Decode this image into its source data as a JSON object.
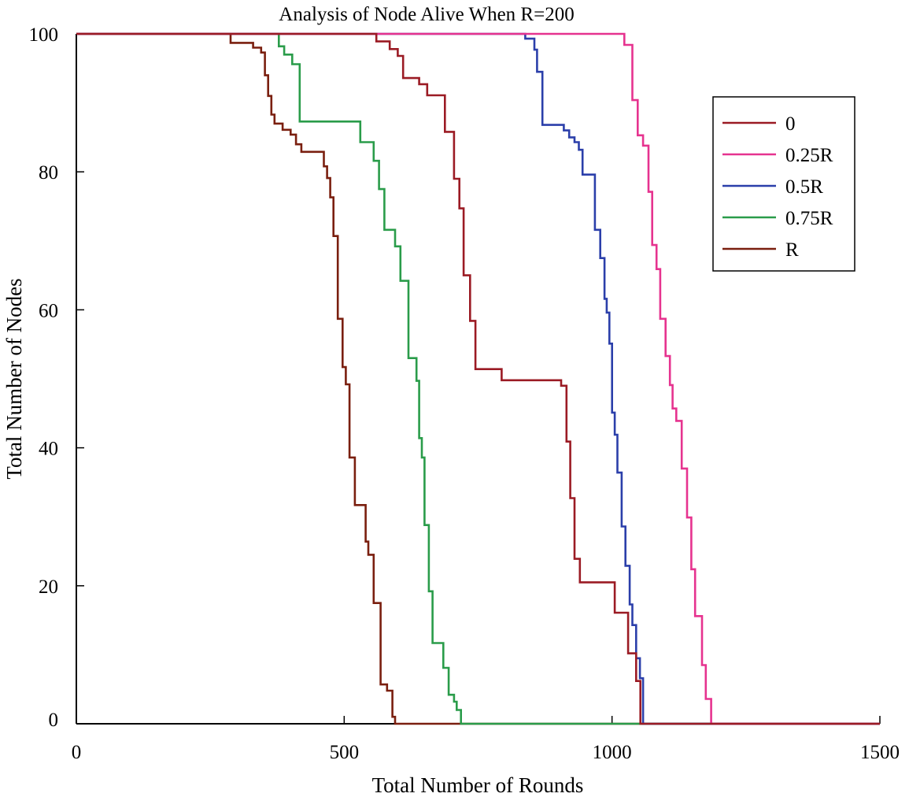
{
  "chart_data": {
    "type": "line",
    "title": "Analysis of Node Alive When R=200",
    "xlabel": "Total Number of Rounds",
    "ylabel": "Total Number of Nodes",
    "xlim": [
      0,
      1500
    ],
    "ylim": [
      0,
      100
    ],
    "xticks": [
      {
        "value": 0,
        "label": "0"
      },
      {
        "value": 500,
        "label": "500"
      },
      {
        "value": 1000,
        "label": "1000"
      },
      {
        "value": 1500,
        "label": "1500"
      }
    ],
    "yticks": [
      {
        "value": 0,
        "label": "0"
      },
      {
        "value": 20,
        "label": "20"
      },
      {
        "value": 40,
        "label": "40"
      },
      {
        "value": 60,
        "label": "60"
      },
      {
        "value": 80,
        "label": "80"
      },
      {
        "value": 100,
        "label": "100"
      }
    ],
    "grid": false,
    "legend_position": "top-right",
    "series": [
      {
        "name": "0",
        "color": "#9b1b24",
        "points": [
          [
            0,
            100
          ],
          [
            560,
            100
          ],
          [
            560,
            98.9
          ],
          [
            585,
            98.9
          ],
          [
            585,
            97.8
          ],
          [
            600,
            97.8
          ],
          [
            600,
            96.8
          ],
          [
            610,
            96.8
          ],
          [
            610,
            93.6
          ],
          [
            640,
            93.6
          ],
          [
            640,
            92.7
          ],
          [
            655,
            92.7
          ],
          [
            655,
            91.1
          ],
          [
            688,
            91.1
          ],
          [
            688,
            85.8
          ],
          [
            705,
            85.8
          ],
          [
            705,
            79.0
          ],
          [
            715,
            79.0
          ],
          [
            715,
            74.7
          ],
          [
            723,
            74.7
          ],
          [
            723,
            65.0
          ],
          [
            735,
            65.0
          ],
          [
            735,
            58.4
          ],
          [
            745,
            58.4
          ],
          [
            745,
            51.4
          ],
          [
            794,
            51.4
          ],
          [
            794,
            49.8
          ],
          [
            905,
            49.8
          ],
          [
            905,
            49.0
          ],
          [
            915,
            49.0
          ],
          [
            915,
            40.9
          ],
          [
            922,
            40.9
          ],
          [
            922,
            32.7
          ],
          [
            930,
            32.7
          ],
          [
            930,
            23.9
          ],
          [
            940,
            23.9
          ],
          [
            940,
            20.5
          ],
          [
            1005,
            20.5
          ],
          [
            1005,
            16.1
          ],
          [
            1030,
            16.1
          ],
          [
            1030,
            10.2
          ],
          [
            1045,
            10.2
          ],
          [
            1045,
            6.2
          ],
          [
            1053,
            6.2
          ],
          [
            1053,
            0
          ],
          [
            1500,
            0
          ]
        ]
      },
      {
        "name": "0.25R",
        "color": "#e6338f",
        "points": [
          [
            0,
            100
          ],
          [
            1023,
            100
          ],
          [
            1023,
            98.4
          ],
          [
            1038,
            98.4
          ],
          [
            1038,
            90.4
          ],
          [
            1048,
            90.4
          ],
          [
            1048,
            85.3
          ],
          [
            1058,
            85.3
          ],
          [
            1058,
            83.8
          ],
          [
            1068,
            83.8
          ],
          [
            1068,
            77.1
          ],
          [
            1075,
            77.1
          ],
          [
            1075,
            69.4
          ],
          [
            1083,
            69.4
          ],
          [
            1083,
            65.9
          ],
          [
            1090,
            65.9
          ],
          [
            1090,
            58.7
          ],
          [
            1100,
            58.7
          ],
          [
            1100,
            53.3
          ],
          [
            1108,
            53.3
          ],
          [
            1108,
            49.1
          ],
          [
            1113,
            49.1
          ],
          [
            1113,
            45.7
          ],
          [
            1120,
            45.7
          ],
          [
            1120,
            43.9
          ],
          [
            1130,
            43.9
          ],
          [
            1130,
            37.0
          ],
          [
            1140,
            37.0
          ],
          [
            1140,
            29.9
          ],
          [
            1148,
            29.9
          ],
          [
            1148,
            22.4
          ],
          [
            1155,
            22.4
          ],
          [
            1155,
            15.6
          ],
          [
            1168,
            15.6
          ],
          [
            1168,
            8.5
          ],
          [
            1175,
            8.5
          ],
          [
            1175,
            3.6
          ],
          [
            1185,
            3.6
          ],
          [
            1185,
            0
          ],
          [
            1500,
            0
          ]
        ]
      },
      {
        "name": "0.5R",
        "color": "#2b3faa",
        "points": [
          [
            0,
            100
          ],
          [
            838,
            100
          ],
          [
            838,
            99.3
          ],
          [
            855,
            99.3
          ],
          [
            855,
            97.7
          ],
          [
            860,
            97.7
          ],
          [
            860,
            94.5
          ],
          [
            870,
            94.5
          ],
          [
            870,
            86.8
          ],
          [
            910,
            86.8
          ],
          [
            910,
            86.0
          ],
          [
            920,
            86.0
          ],
          [
            920,
            85.0
          ],
          [
            930,
            85.0
          ],
          [
            930,
            84.3
          ],
          [
            938,
            84.3
          ],
          [
            938,
            83.2
          ],
          [
            945,
            83.2
          ],
          [
            945,
            79.6
          ],
          [
            968,
            79.6
          ],
          [
            968,
            71.6
          ],
          [
            978,
            71.6
          ],
          [
            978,
            67.5
          ],
          [
            986,
            67.5
          ],
          [
            986,
            61.6
          ],
          [
            990,
            61.6
          ],
          [
            990,
            59.6
          ],
          [
            995,
            59.6
          ],
          [
            995,
            55.1
          ],
          [
            1000,
            55.1
          ],
          [
            1000,
            45.1
          ],
          [
            1005,
            45.1
          ],
          [
            1005,
            41.9
          ],
          [
            1010,
            41.9
          ],
          [
            1010,
            36.4
          ],
          [
            1018,
            36.4
          ],
          [
            1018,
            28.6
          ],
          [
            1025,
            28.6
          ],
          [
            1025,
            22.9
          ],
          [
            1033,
            22.9
          ],
          [
            1033,
            17.3
          ],
          [
            1038,
            17.3
          ],
          [
            1038,
            14.3
          ],
          [
            1045,
            14.3
          ],
          [
            1045,
            9.5
          ],
          [
            1052,
            9.5
          ],
          [
            1052,
            6.6
          ],
          [
            1058,
            6.6
          ],
          [
            1058,
            0
          ],
          [
            1500,
            0
          ]
        ]
      },
      {
        "name": "0.75R",
        "color": "#2a9c4a",
        "points": [
          [
            0,
            100
          ],
          [
            378,
            100
          ],
          [
            378,
            98.2
          ],
          [
            388,
            98.2
          ],
          [
            388,
            97.0
          ],
          [
            403,
            97.0
          ],
          [
            403,
            95.6
          ],
          [
            417,
            95.6
          ],
          [
            417,
            87.3
          ],
          [
            530,
            87.3
          ],
          [
            530,
            84.3
          ],
          [
            555,
            84.3
          ],
          [
            555,
            81.6
          ],
          [
            565,
            81.6
          ],
          [
            565,
            77.5
          ],
          [
            575,
            77.5
          ],
          [
            575,
            71.6
          ],
          [
            595,
            71.6
          ],
          [
            595,
            69.2
          ],
          [
            605,
            69.2
          ],
          [
            605,
            64.2
          ],
          [
            620,
            64.2
          ],
          [
            620,
            53.0
          ],
          [
            635,
            53.0
          ],
          [
            635,
            49.7
          ],
          [
            640,
            49.7
          ],
          [
            640,
            41.4
          ],
          [
            645,
            41.4
          ],
          [
            645,
            38.6
          ],
          [
            650,
            38.6
          ],
          [
            650,
            28.8
          ],
          [
            658,
            28.8
          ],
          [
            658,
            19.2
          ],
          [
            665,
            19.2
          ],
          [
            665,
            11.7
          ],
          [
            685,
            11.7
          ],
          [
            685,
            8.1
          ],
          [
            695,
            8.1
          ],
          [
            695,
            4.2
          ],
          [
            705,
            4.2
          ],
          [
            705,
            3.2
          ],
          [
            710,
            3.2
          ],
          [
            710,
            2.0
          ],
          [
            718,
            2.0
          ],
          [
            718,
            0
          ],
          [
            1500,
            0
          ]
        ]
      },
      {
        "name": "R",
        "color": "#7a1f0f",
        "points": [
          [
            0,
            100
          ],
          [
            288,
            100
          ],
          [
            288,
            98.7
          ],
          [
            330,
            98.7
          ],
          [
            330,
            98.0
          ],
          [
            345,
            98.0
          ],
          [
            345,
            97.3
          ],
          [
            352,
            97.3
          ],
          [
            352,
            94.0
          ],
          [
            358,
            94.0
          ],
          [
            358,
            91.0
          ],
          [
            364,
            91.0
          ],
          [
            364,
            88.3
          ],
          [
            370,
            88.3
          ],
          [
            370,
            87.0
          ],
          [
            385,
            87.0
          ],
          [
            385,
            86.1
          ],
          [
            400,
            86.1
          ],
          [
            400,
            85.4
          ],
          [
            410,
            85.4
          ],
          [
            410,
            84.0
          ],
          [
            420,
            84.0
          ],
          [
            420,
            82.9
          ],
          [
            462,
            82.9
          ],
          [
            462,
            80.8
          ],
          [
            468,
            80.8
          ],
          [
            468,
            79.1
          ],
          [
            474,
            79.1
          ],
          [
            474,
            76.3
          ],
          [
            480,
            76.3
          ],
          [
            480,
            70.7
          ],
          [
            488,
            70.7
          ],
          [
            488,
            58.7
          ],
          [
            497,
            58.7
          ],
          [
            497,
            51.7
          ],
          [
            503,
            51.7
          ],
          [
            503,
            49.2
          ],
          [
            510,
            49.2
          ],
          [
            510,
            38.6
          ],
          [
            520,
            38.6
          ],
          [
            520,
            31.7
          ],
          [
            540,
            31.7
          ],
          [
            540,
            26.4
          ],
          [
            545,
            26.4
          ],
          [
            545,
            24.5
          ],
          [
            555,
            24.5
          ],
          [
            555,
            17.5
          ],
          [
            568,
            17.5
          ],
          [
            568,
            5.7
          ],
          [
            580,
            5.7
          ],
          [
            580,
            4.8
          ],
          [
            590,
            4.8
          ],
          [
            590,
            1.0
          ],
          [
            595,
            1.0
          ],
          [
            595,
            0
          ],
          [
            1500,
            0
          ]
        ]
      }
    ]
  }
}
